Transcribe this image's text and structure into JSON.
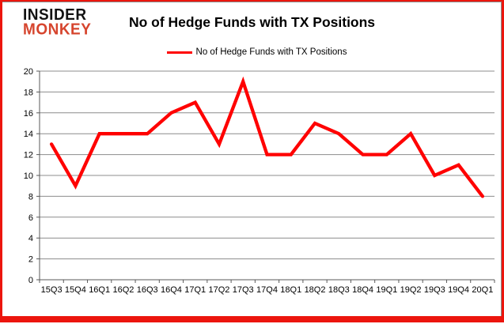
{
  "brand": {
    "line1": "INSIDER",
    "line2": "MONKEY"
  },
  "header": {
    "title": "No of Hedge Funds with TX Positions"
  },
  "legend": {
    "label": "No of Hedge Funds with TX Positions"
  },
  "colors": {
    "series_red": "#ff0000",
    "frame_red": "#ec150d",
    "logo_red": "#d6452e",
    "grid": "#8c8c8c",
    "axis": "#595959",
    "text": "#000000"
  },
  "chart_data": {
    "type": "line",
    "title": "No of Hedge Funds with TX Positions",
    "categories": [
      "15Q3",
      "15Q4",
      "16Q1",
      "16Q2",
      "16Q3",
      "16Q4",
      "17Q1",
      "17Q2",
      "17Q3",
      "17Q4",
      "18Q1",
      "18Q2",
      "18Q3",
      "18Q4",
      "19Q1",
      "19Q2",
      "19Q3",
      "19Q4",
      "20Q1"
    ],
    "series": [
      {
        "name": "No of Hedge Funds with TX Positions",
        "color": "#ff0000",
        "values": [
          13,
          9,
          14,
          14,
          14,
          16,
          17,
          13,
          19,
          12,
          12,
          15,
          14,
          12,
          12,
          14,
          10,
          11,
          8
        ]
      }
    ],
    "xlabel": "",
    "ylabel": "",
    "ylim": [
      0,
      20
    ],
    "ytick_step": 2,
    "grid": true,
    "legend_position": "top-center"
  }
}
